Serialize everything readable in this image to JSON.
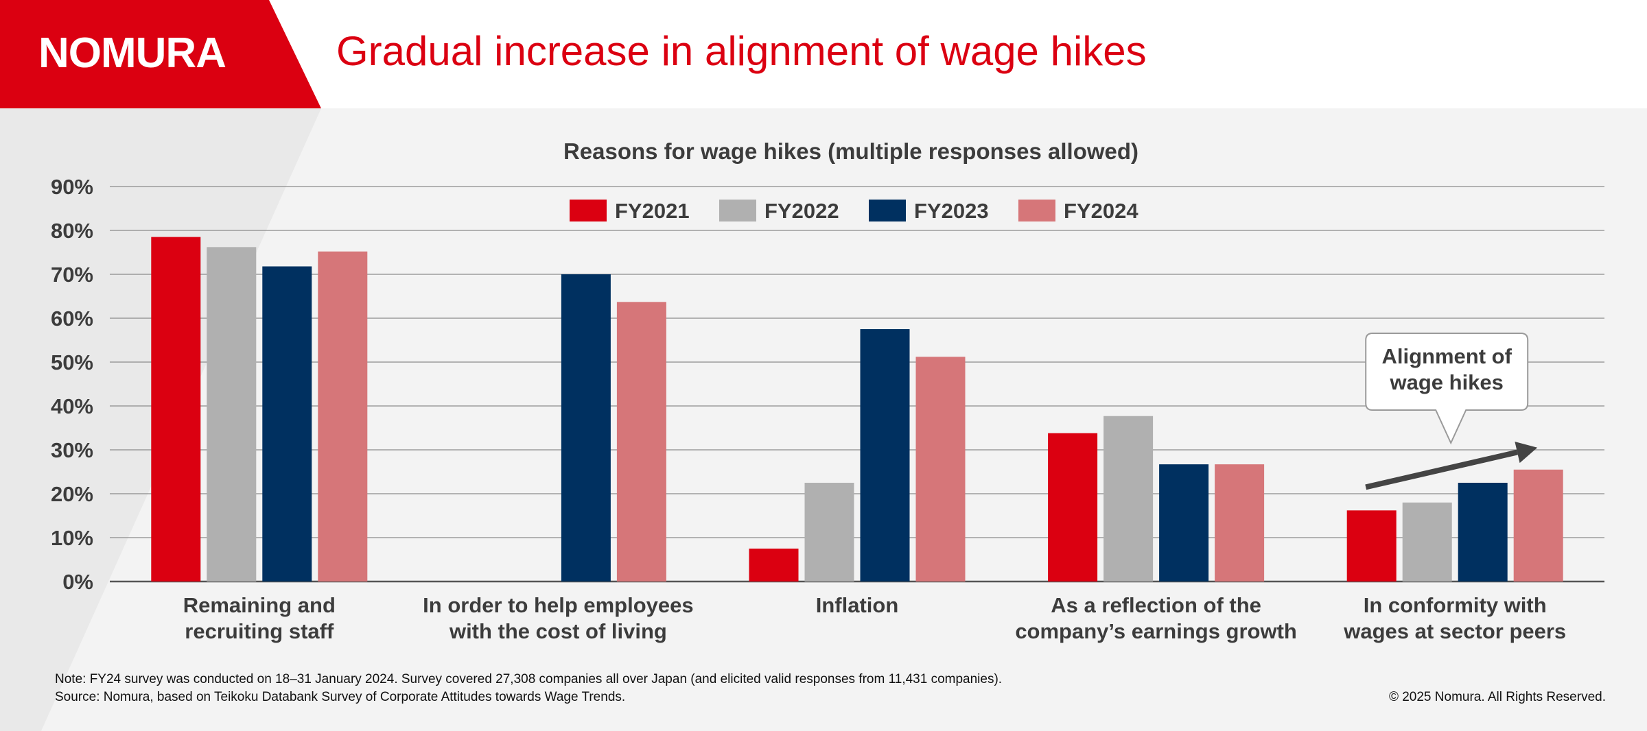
{
  "brand": {
    "logo": "NOMURA",
    "accent": "#db0011"
  },
  "headline": "Gradual increase in alignment of wage hikes",
  "chart_data": {
    "type": "bar",
    "title": "Reasons for wage hikes (multiple responses allowed)",
    "categories": [
      [
        "Remaining and",
        "recruiting staff"
      ],
      [
        "In order to help employees",
        "with the cost of living"
      ],
      [
        "Inflation"
      ],
      [
        "As a reflection of the",
        "company’s earnings growth"
      ],
      [
        "In conformity with",
        "wages at sector peers"
      ]
    ],
    "series": [
      {
        "name": "FY2021",
        "color": "#db0011",
        "values": [
          78.5,
          null,
          7.5,
          33.8,
          16.2
        ]
      },
      {
        "name": "FY2022",
        "color": "#b0b0b0",
        "values": [
          76.2,
          null,
          22.5,
          37.7,
          18.0
        ]
      },
      {
        "name": "FY2023",
        "color": "#003060",
        "values": [
          71.8,
          70.0,
          57.5,
          26.7,
          22.5
        ]
      },
      {
        "name": "FY2024",
        "color": "#d67679",
        "values": [
          75.2,
          63.7,
          51.2,
          26.7,
          25.5
        ]
      }
    ],
    "ylim": [
      0,
      90
    ],
    "yticks": [
      "0%",
      "10%",
      "20%",
      "30%",
      "40%",
      "50%",
      "60%",
      "70%",
      "80%",
      "90%"
    ],
    "grid": true,
    "legend_position": "top-center",
    "annotation": {
      "text": [
        "Alignment of",
        "wage hikes"
      ],
      "category_index": 4
    }
  },
  "footer": {
    "note": "Note: FY24 survey was conducted on 18–31 January 2024. Survey covered 27,308 companies all over Japan (and elicited valid responses from 11,431 companies).",
    "source": "Source: Nomura, based on Teikoku Databank Survey of Corporate Attitudes towards Wage Trends.",
    "copyright": "© 2025 Nomura. All Rights Reserved."
  }
}
